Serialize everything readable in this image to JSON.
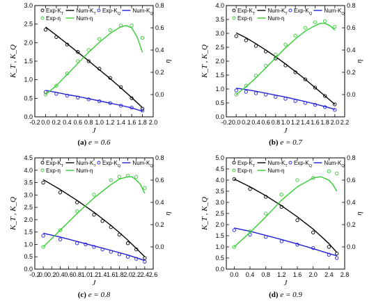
{
  "colors": {
    "kt": "#000000",
    "kq": "#1f1fd6",
    "eta": "#33cc33"
  },
  "legend": {
    "exp_kt": "Exp-Kₜ",
    "num_kt": "Num-Kₜ",
    "exp_kq": "Exp-K_Q",
    "num_kq": "Num-K_Q",
    "exp_eta": "Exp-η",
    "num_eta": "Num-η"
  },
  "chart_data": [
    {
      "type": "line",
      "panel": "a",
      "caption_label": "(a)",
      "caption_text": "e = 0.6",
      "xlabel": "J",
      "ylabel_left": "K_T , K_Q",
      "ylabel_right": "η",
      "xlim": [
        -0.2,
        2.0
      ],
      "xticks": [
        -0.2,
        0.0,
        0.2,
        0.4,
        0.6,
        0.8,
        1.0,
        1.2,
        1.4,
        1.6,
        1.8,
        2.0
      ],
      "ylim_left": [
        0.0,
        3.0
      ],
      "yticks_left": [
        0.0,
        0.5,
        1.0,
        1.5,
        2.0,
        2.5,
        3.0
      ],
      "ylim_right": [
        -0.2,
        0.8
      ],
      "yticks_right": [
        0.0,
        0.2,
        0.4,
        0.6,
        0.8
      ],
      "series": [
        {
          "name": "Exp-Kₜ",
          "kind": "exp",
          "axis": "left",
          "color_key": "kt",
          "x": [
            0.0,
            0.2,
            0.4,
            0.6,
            0.8,
            1.0,
            1.2,
            1.4,
            1.6,
            1.8
          ],
          "values": [
            2.35,
            2.15,
            1.95,
            1.75,
            1.5,
            1.3,
            1.05,
            0.8,
            0.5,
            0.22
          ]
        },
        {
          "name": "Num-Kₜ",
          "kind": "num",
          "axis": "left",
          "color_key": "kt",
          "x": [
            0.0,
            0.2,
            0.4,
            0.6,
            0.8,
            1.0,
            1.2,
            1.4,
            1.6,
            1.8
          ],
          "values": [
            2.42,
            2.2,
            1.97,
            1.74,
            1.51,
            1.27,
            1.03,
            0.78,
            0.52,
            0.25
          ]
        },
        {
          "name": "Exp-K_Q",
          "kind": "exp",
          "axis": "left",
          "color_key": "kq",
          "x": [
            0.0,
            0.2,
            0.4,
            0.6,
            0.8,
            1.0,
            1.2,
            1.4,
            1.6,
            1.8
          ],
          "values": [
            0.67,
            0.62,
            0.57,
            0.52,
            0.47,
            0.42,
            0.37,
            0.3,
            0.25,
            0.17
          ]
        },
        {
          "name": "Num-K_Q",
          "kind": "num",
          "axis": "left",
          "color_key": "kq",
          "x": [
            0.0,
            0.2,
            0.4,
            0.6,
            0.8,
            1.0,
            1.2,
            1.4,
            1.6,
            1.8
          ],
          "values": [
            0.71,
            0.66,
            0.6,
            0.55,
            0.49,
            0.43,
            0.37,
            0.31,
            0.24,
            0.15
          ]
        },
        {
          "name": "Exp-η",
          "kind": "exp",
          "axis": "right",
          "color_key": "eta",
          "x": [
            0.0,
            0.2,
            0.4,
            0.6,
            0.8,
            1.0,
            1.2,
            1.4,
            1.6,
            1.8
          ],
          "values": [
            0.0,
            0.08,
            0.19,
            0.3,
            0.4,
            0.5,
            0.58,
            0.62,
            0.62,
            0.51
          ]
        },
        {
          "name": "Num-η",
          "kind": "num",
          "axis": "right",
          "color_key": "eta",
          "x": [
            0.0,
            0.2,
            0.4,
            0.6,
            0.8,
            1.0,
            1.2,
            1.4,
            1.5,
            1.6,
            1.7,
            1.8
          ],
          "values": [
            0.0,
            0.08,
            0.18,
            0.28,
            0.38,
            0.47,
            0.55,
            0.61,
            0.62,
            0.6,
            0.52,
            0.38
          ]
        }
      ]
    },
    {
      "type": "line",
      "panel": "b",
      "caption_label": "(b)",
      "caption_text": "e = 0.7",
      "xlabel": "J",
      "ylabel_left": "K_T , K_Q",
      "ylabel_right": "η",
      "xlim": [
        -0.2,
        2.2
      ],
      "xticks": [
        -0.2,
        0.0,
        0.2,
        0.4,
        0.6,
        0.8,
        1.0,
        1.2,
        1.4,
        1.6,
        1.8,
        2.0,
        2.2
      ],
      "ylim_left": [
        0.0,
        4.0
      ],
      "yticks_left": [
        0.0,
        0.5,
        1.0,
        1.5,
        2.0,
        2.5,
        3.0,
        3.5,
        4.0
      ],
      "ylim_right": [
        -0.2,
        0.8
      ],
      "yticks_right": [
        0.0,
        0.2,
        0.4,
        0.6,
        0.8
      ],
      "series": [
        {
          "name": "Exp-Kₜ",
          "kind": "exp",
          "axis": "left",
          "color_key": "kt",
          "x": [
            0.0,
            0.2,
            0.4,
            0.6,
            0.8,
            1.0,
            1.2,
            1.4,
            1.6,
            1.8,
            2.0
          ],
          "values": [
            2.9,
            2.75,
            2.55,
            2.35,
            2.1,
            1.85,
            1.6,
            1.35,
            1.05,
            0.75,
            0.45
          ]
        },
        {
          "name": "Num-Kₜ",
          "kind": "num",
          "axis": "left",
          "color_key": "kt",
          "x": [
            0.0,
            0.2,
            0.4,
            0.6,
            0.8,
            1.0,
            1.2,
            1.4,
            1.6,
            1.8,
            2.0
          ],
          "values": [
            3.02,
            2.84,
            2.63,
            2.4,
            2.16,
            1.9,
            1.63,
            1.35,
            1.05,
            0.75,
            0.45
          ]
        },
        {
          "name": "Exp-K_Q",
          "kind": "exp",
          "axis": "left",
          "color_key": "kq",
          "x": [
            0.0,
            0.2,
            0.4,
            0.6,
            0.8,
            1.0,
            1.2,
            1.4,
            1.6,
            1.8,
            2.0
          ],
          "values": [
            0.95,
            0.9,
            0.85,
            0.8,
            0.72,
            0.65,
            0.57,
            0.5,
            0.43,
            0.35,
            0.25
          ]
        },
        {
          "name": "Num-K_Q",
          "kind": "num",
          "axis": "left",
          "color_key": "kq",
          "x": [
            0.0,
            0.2,
            0.4,
            0.6,
            0.8,
            1.0,
            1.2,
            1.4,
            1.6,
            1.8,
            2.0
          ],
          "values": [
            1.03,
            0.98,
            0.92,
            0.85,
            0.78,
            0.71,
            0.63,
            0.55,
            0.46,
            0.37,
            0.27
          ]
        },
        {
          "name": "Exp-η",
          "kind": "exp",
          "axis": "right",
          "color_key": "eta",
          "x": [
            0.0,
            0.2,
            0.4,
            0.6,
            0.8,
            1.0,
            1.2,
            1.4,
            1.6,
            1.8,
            2.0
          ],
          "values": [
            0.0,
            0.08,
            0.17,
            0.26,
            0.36,
            0.45,
            0.53,
            0.6,
            0.65,
            0.66,
            0.61
          ]
        },
        {
          "name": "Num-η",
          "kind": "num",
          "axis": "right",
          "color_key": "eta",
          "x": [
            0.0,
            0.2,
            0.4,
            0.6,
            0.8,
            1.0,
            1.2,
            1.4,
            1.6,
            1.7,
            1.8,
            1.9,
            2.0
          ],
          "values": [
            0.0,
            0.07,
            0.15,
            0.24,
            0.33,
            0.42,
            0.5,
            0.57,
            0.62,
            0.64,
            0.64,
            0.62,
            0.58
          ]
        }
      ]
    },
    {
      "type": "line",
      "panel": "c",
      "caption_label": "(c)",
      "caption_text": "e = 0.8",
      "xlabel": "J",
      "ylabel_left": "K_T , K_Q",
      "ylabel_right": "η",
      "xlim": [
        -0.2,
        2.6
      ],
      "xticks": [
        -0.2,
        0.0,
        0.2,
        0.4,
        0.6,
        0.8,
        1.0,
        1.2,
        1.4,
        1.6,
        1.8,
        2.0,
        2.2,
        2.4,
        2.6
      ],
      "ylim_left": [
        0.0,
        4.5
      ],
      "yticks_left": [
        0.0,
        0.5,
        1.0,
        1.5,
        2.0,
        2.5,
        3.0,
        3.5,
        4.0,
        4.5
      ],
      "ylim_right": [
        -0.2,
        0.8
      ],
      "yticks_right": [
        0.0,
        0.2,
        0.4,
        0.6,
        0.8
      ],
      "series": [
        {
          "name": "Exp-Kₜ",
          "kind": "exp",
          "axis": "left",
          "color_key": "kt",
          "x": [
            0.0,
            0.4,
            0.8,
            1.2,
            1.4,
            1.6,
            1.8,
            2.0,
            2.2,
            2.4
          ],
          "values": [
            3.5,
            3.1,
            2.7,
            2.2,
            1.95,
            1.7,
            1.4,
            1.05,
            0.8,
            0.45
          ]
        },
        {
          "name": "Num-Kₜ",
          "kind": "num",
          "axis": "left",
          "color_key": "kt",
          "x": [
            0.0,
            0.4,
            0.8,
            1.2,
            1.4,
            1.6,
            1.8,
            2.0,
            2.2,
            2.4
          ],
          "values": [
            3.62,
            3.22,
            2.78,
            2.3,
            2.04,
            1.77,
            1.48,
            1.17,
            0.84,
            0.5
          ]
        },
        {
          "name": "Exp-K_Q",
          "kind": "exp",
          "axis": "left",
          "color_key": "kq",
          "x": [
            0.0,
            0.4,
            0.8,
            1.0,
            1.2,
            1.4,
            1.6,
            1.8,
            2.0,
            2.2,
            2.4
          ],
          "values": [
            1.35,
            1.2,
            1.05,
            1.0,
            0.9,
            0.8,
            0.7,
            0.6,
            0.5,
            0.42,
            0.3
          ]
        },
        {
          "name": "Num-K_Q",
          "kind": "num",
          "axis": "left",
          "color_key": "kq",
          "x": [
            0.0,
            0.4,
            0.8,
            1.2,
            1.6,
            2.0,
            2.4
          ],
          "values": [
            1.45,
            1.3,
            1.12,
            0.94,
            0.76,
            0.57,
            0.35
          ]
        },
        {
          "name": "Exp-η",
          "kind": "exp",
          "axis": "right",
          "color_key": "eta",
          "x": [
            0.0,
            0.4,
            0.8,
            1.2,
            1.6,
            1.8,
            2.0,
            2.2,
            2.4
          ],
          "values": [
            0.0,
            0.15,
            0.32,
            0.47,
            0.6,
            0.63,
            0.64,
            0.63,
            0.53
          ]
        },
        {
          "name": "Num-η",
          "kind": "num",
          "axis": "right",
          "color_key": "eta",
          "x": [
            0.0,
            0.4,
            0.8,
            1.2,
            1.6,
            1.8,
            2.0,
            2.1,
            2.2,
            2.3,
            2.4
          ],
          "values": [
            0.0,
            0.15,
            0.3,
            0.44,
            0.56,
            0.61,
            0.63,
            0.63,
            0.6,
            0.56,
            0.48
          ]
        }
      ]
    },
    {
      "type": "line",
      "panel": "d",
      "caption_label": "(d)",
      "caption_text": "e = 0.9",
      "xlabel": "J",
      "ylabel_left": "K_T , K_Q",
      "ylabel_right": "η",
      "xlim": [
        -0.2,
        2.8
      ],
      "xticks": [
        0.0,
        0.4,
        0.8,
        1.2,
        1.6,
        2.0,
        2.4,
        2.8
      ],
      "ylim_left": [
        0.0,
        5.0
      ],
      "yticks_left": [
        0.0,
        0.5,
        1.0,
        1.5,
        2.0,
        2.5,
        3.0,
        3.5,
        4.0,
        4.5,
        5.0
      ],
      "ylim_right": [
        -0.2,
        0.8
      ],
      "yticks_right": [
        0.0,
        0.2,
        0.4,
        0.6,
        0.8
      ],
      "series": [
        {
          "name": "Exp-Kₜ",
          "kind": "exp",
          "axis": "left",
          "color_key": "kt",
          "x": [
            0.0,
            0.4,
            0.8,
            1.2,
            1.6,
            2.0,
            2.4,
            2.6
          ],
          "values": [
            4.05,
            3.6,
            3.25,
            2.8,
            2.2,
            1.65,
            1.0,
            0.7
          ]
        },
        {
          "name": "Num-Kₜ",
          "kind": "num",
          "axis": "left",
          "color_key": "kt",
          "x": [
            0.0,
            0.4,
            0.8,
            1.2,
            1.6,
            2.0,
            2.4,
            2.6
          ],
          "values": [
            4.05,
            3.7,
            3.3,
            2.85,
            2.35,
            1.8,
            1.15,
            0.75
          ]
        },
        {
          "name": "Exp-K_Q",
          "kind": "exp",
          "axis": "left",
          "color_key": "kq",
          "x": [
            0.0,
            0.4,
            0.8,
            1.2,
            1.6,
            2.0,
            2.4,
            2.6
          ],
          "values": [
            1.75,
            1.55,
            1.45,
            1.25,
            1.1,
            0.95,
            0.65,
            0.5
          ]
        },
        {
          "name": "Num-K_Q",
          "kind": "num",
          "axis": "left",
          "color_key": "kq",
          "x": [
            0.0,
            0.4,
            0.8,
            1.2,
            1.6,
            2.0,
            2.4,
            2.6
          ],
          "values": [
            1.85,
            1.7,
            1.52,
            1.33,
            1.13,
            0.92,
            0.7,
            0.6
          ]
        },
        {
          "name": "Exp-η",
          "kind": "exp",
          "axis": "right",
          "color_key": "eta",
          "x": [
            0.0,
            0.4,
            0.8,
            1.2,
            1.6,
            2.0,
            2.4,
            2.6
          ],
          "values": [
            0.0,
            0.14,
            0.3,
            0.47,
            0.6,
            0.62,
            0.68,
            0.66
          ]
        },
        {
          "name": "Num-η",
          "kind": "num",
          "axis": "right",
          "color_key": "eta",
          "x": [
            0.0,
            0.4,
            0.8,
            1.2,
            1.6,
            2.0,
            2.2,
            2.4,
            2.5,
            2.6
          ],
          "values": [
            0.0,
            0.13,
            0.27,
            0.42,
            0.54,
            0.62,
            0.63,
            0.6,
            0.56,
            0.5
          ]
        }
      ]
    }
  ]
}
